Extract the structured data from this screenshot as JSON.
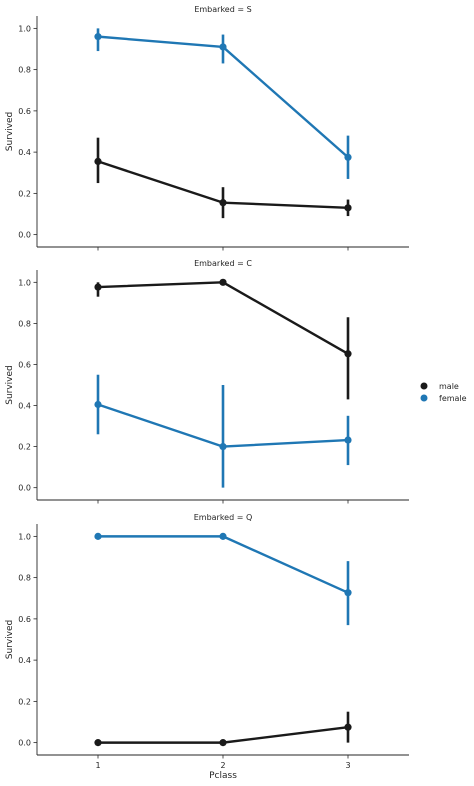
{
  "chart_data": {
    "type": "line",
    "xlabel": "Pclass",
    "ylabel": "Survived",
    "categories": [
      "1",
      "2",
      "3"
    ],
    "ylim": [
      -0.06,
      1.06
    ],
    "yticks": [
      "0.0",
      "0.2",
      "0.4",
      "0.6",
      "0.8",
      "1.0"
    ],
    "legend": {
      "placement": "right",
      "entries": [
        "male",
        "female"
      ]
    },
    "colors": {
      "male": "#1a1a1a",
      "female": "#1f77b4"
    },
    "panels": [
      {
        "title": "Embarked = S",
        "series": [
          {
            "name": "male",
            "values": [
              0.355,
              0.155,
              0.13
            ],
            "ci_low": [
              0.25,
              0.08,
              0.09
            ],
            "ci_high": [
              0.47,
              0.23,
              0.17
            ]
          },
          {
            "name": "female",
            "values": [
              0.96,
              0.91,
              0.375
            ],
            "ci_low": [
              0.89,
              0.83,
              0.27
            ],
            "ci_high": [
              1.0,
              0.97,
              0.48
            ]
          }
        ]
      },
      {
        "title": "Embarked = C",
        "series": [
          {
            "name": "male",
            "values": [
              0.977,
              1.0,
              0.652
            ],
            "ci_low": [
              0.93,
              1.0,
              0.43
            ],
            "ci_high": [
              1.0,
              1.0,
              0.83
            ]
          },
          {
            "name": "female",
            "values": [
              0.405,
              0.2,
              0.232
            ],
            "ci_low": [
              0.26,
              0.0,
              0.11
            ],
            "ci_high": [
              0.55,
              0.5,
              0.35
            ]
          }
        ]
      },
      {
        "title": "Embarked = Q",
        "series": [
          {
            "name": "male",
            "values": [
              0.0,
              0.0,
              0.075
            ],
            "ci_low": [
              0.0,
              0.0,
              0.0
            ],
            "ci_high": [
              0.0,
              0.0,
              0.15
            ]
          },
          {
            "name": "female",
            "values": [
              1.0,
              1.0,
              0.727
            ],
            "ci_low": [
              1.0,
              1.0,
              0.57
            ],
            "ci_high": [
              1.0,
              1.0,
              0.88
            ]
          }
        ]
      }
    ]
  }
}
